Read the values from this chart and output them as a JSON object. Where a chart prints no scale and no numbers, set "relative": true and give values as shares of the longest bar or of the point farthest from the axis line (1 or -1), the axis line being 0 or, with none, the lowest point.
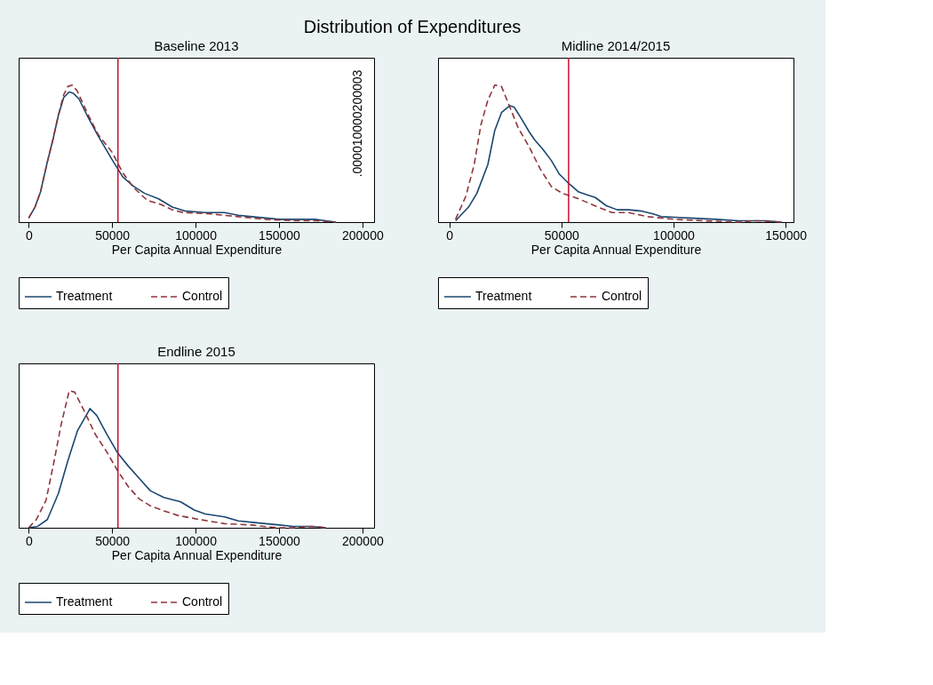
{
  "chart_data": [
    {
      "type": "line",
      "title": "Distribution of Expenditures",
      "subtitle": "Baseline 2013",
      "xlabel": "Per Capita Annual Expenditure",
      "relative": true,
      "xlim": [
        -6000,
        207000
      ],
      "xticks": [
        0,
        50000,
        100000,
        150000,
        200000
      ],
      "legend": "bottom",
      "annotations": [
        ".000010000200003"
      ],
      "ref_lines": [
        {
          "axis": "x",
          "value": 53500,
          "color": "#c8102e"
        }
      ],
      "series": [
        {
          "name": "Treatment",
          "color": "#1a476f",
          "line_style": "solid",
          "x": [
            0,
            3800,
            7100,
            11200,
            14500,
            17800,
            21000,
            24300,
            26800,
            30100,
            35000,
            41600,
            49800,
            56400,
            63000,
            69500,
            77800,
            86000,
            94200,
            105800,
            117300,
            125500,
            133700,
            142000,
            150200,
            158400,
            171500,
            178100,
            184200
          ],
          "values": [
            0.03,
            0.11,
            0.22,
            0.44,
            0.6,
            0.78,
            0.91,
            0.95,
            0.94,
            0.9,
            0.78,
            0.63,
            0.46,
            0.33,
            0.26,
            0.21,
            0.17,
            0.11,
            0.08,
            0.07,
            0.07,
            0.05,
            0.04,
            0.03,
            0.02,
            0.02,
            0.02,
            0.01,
            0
          ]
        },
        {
          "name": "Control",
          "color": "#90353b",
          "line_style": "dashed",
          "x": [
            0,
            3800,
            7100,
            11200,
            14500,
            17800,
            21000,
            23500,
            26000,
            29000,
            35000,
            41600,
            50000,
            56400,
            63000,
            71000,
            79000,
            86000,
            92600,
            109000,
            125500,
            142000,
            158400,
            171500,
            184200
          ],
          "values": [
            0.03,
            0.11,
            0.22,
            0.44,
            0.6,
            0.78,
            0.93,
            0.99,
            1.0,
            0.96,
            0.8,
            0.64,
            0.51,
            0.36,
            0.25,
            0.16,
            0.13,
            0.09,
            0.07,
            0.06,
            0.04,
            0.02,
            0.01,
            0.01,
            0
          ]
        }
      ]
    },
    {
      "type": "line",
      "subtitle": "Midline 2014/2015",
      "xlabel": "Per Capita Annual Expenditure",
      "relative": true,
      "xlim": [
        -5000,
        153500
      ],
      "xticks": [
        0,
        50000,
        100000,
        150000
      ],
      "legend": "bottom",
      "ref_lines": [
        {
          "axis": "x",
          "value": 53200,
          "color": "#c8102e"
        }
      ],
      "series": [
        {
          "name": "Treatment",
          "color": "#1a476f",
          "line_style": "solid",
          "x": [
            2800,
            8600,
            12300,
            17200,
            20300,
            23300,
            27000,
            28900,
            32000,
            35600,
            38100,
            41800,
            45500,
            49100,
            52800,
            57700,
            61400,
            65100,
            70000,
            74900,
            79900,
            86000,
            90900,
            94600,
            106900,
            119200,
            129000,
            136400,
            141300,
            148300
          ],
          "values": [
            0.01,
            0.11,
            0.21,
            0.42,
            0.67,
            0.8,
            0.85,
            0.84,
            0.76,
            0.66,
            0.6,
            0.53,
            0.45,
            0.35,
            0.29,
            0.22,
            0.2,
            0.18,
            0.12,
            0.09,
            0.09,
            0.08,
            0.06,
            0.04,
            0.03,
            0.02,
            0.01,
            0.01,
            0.01,
            0
          ]
        },
        {
          "name": "Control",
          "color": "#90353b",
          "line_style": "dashed",
          "x": [
            2800,
            7400,
            11100,
            14100,
            17200,
            20300,
            23300,
            27000,
            30700,
            35600,
            40500,
            45500,
            50400,
            57700,
            66300,
            72500,
            79900,
            88500,
            100700,
            113000,
            129000,
            136400,
            148300
          ],
          "values": [
            0.02,
            0.19,
            0.42,
            0.71,
            0.89,
            1.0,
            0.99,
            0.84,
            0.69,
            0.55,
            0.39,
            0.26,
            0.21,
            0.17,
            0.11,
            0.07,
            0.07,
            0.04,
            0.02,
            0.01,
            0,
            0.01,
            0
          ]
        }
      ]
    },
    {
      "type": "line",
      "subtitle": "Endline 2015",
      "xlabel": "Per Capita Annual Expenditure",
      "relative": true,
      "xlim": [
        -6000,
        207000
      ],
      "xticks": [
        0,
        50000,
        100000,
        150000,
        200000
      ],
      "legend": "bottom",
      "ref_lines": [
        {
          "axis": "x",
          "value": 53500,
          "color": "#c8102e"
        }
      ],
      "series": [
        {
          "name": "Treatment",
          "color": "#1a476f",
          "line_style": "solid",
          "x": [
            0,
            5400,
            11200,
            17800,
            23500,
            29300,
            35900,
            36700,
            40800,
            46500,
            53100,
            59700,
            66300,
            72900,
            81100,
            91000,
            99200,
            105800,
            117300,
            125500,
            133700,
            150200,
            158400,
            169900,
            178100
          ],
          "values": [
            0,
            0.01,
            0.06,
            0.25,
            0.49,
            0.71,
            0.85,
            0.87,
            0.82,
            0.69,
            0.55,
            0.45,
            0.36,
            0.27,
            0.22,
            0.19,
            0.13,
            0.1,
            0.08,
            0.05,
            0.04,
            0.02,
            0.01,
            0.01,
            0
          ]
        },
        {
          "name": "Control",
          "color": "#90353b",
          "line_style": "dashed",
          "x": [
            0,
            4600,
            10400,
            15300,
            19400,
            24300,
            27600,
            33400,
            40000,
            46500,
            53100,
            59700,
            66300,
            72900,
            79400,
            89300,
            102400,
            117300,
            133700,
            148500,
            158400,
            169900,
            178100
          ],
          "values": [
            0,
            0.06,
            0.2,
            0.49,
            0.75,
            1.0,
            0.99,
            0.85,
            0.68,
            0.56,
            0.42,
            0.3,
            0.21,
            0.16,
            0.13,
            0.09,
            0.06,
            0.03,
            0.02,
            0,
            0,
            0.01,
            0
          ]
        }
      ]
    }
  ]
}
